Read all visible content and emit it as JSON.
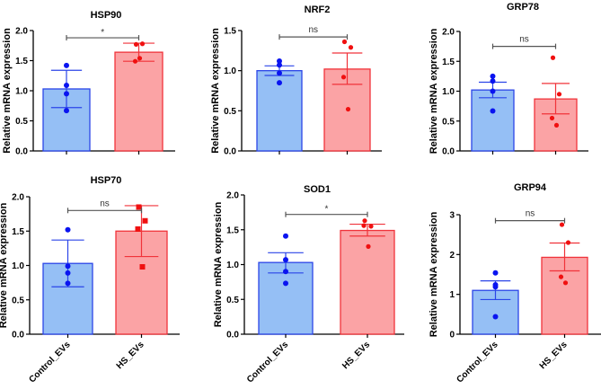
{
  "chart_data": {
    "type": "bar",
    "categories": [
      "Control_EVs",
      "HS_EVs"
    ],
    "ylabel": "Relative mRNA expression",
    "colors": {
      "control_fill": "#95bff5",
      "control_edge": "#2b45e8",
      "control_point": "#0a14f0",
      "hs_fill": "#fba3a5",
      "hs_edge": "#f0333a",
      "hs_point": "#f01010",
      "bracket": "#555555"
    },
    "panels": [
      {
        "title": "HSP90",
        "ylim": [
          0,
          2.0
        ],
        "yticks": [
          "0.0",
          "0.5",
          "1.0",
          "1.5",
          "2.0"
        ],
        "significance": "*",
        "bracket_y": 1.88,
        "series": [
          {
            "name": "Control_EVs",
            "mean": 1.03,
            "err": [
              0.72,
              1.34
            ],
            "points": [
              1.42,
              1.09,
              0.95,
              0.67
            ]
          },
          {
            "name": "HS_EVs",
            "mean": 1.64,
            "err": [
              1.49,
              1.79
            ],
            "points": [
              1.77,
              1.78,
              1.49,
              1.54
            ]
          }
        ]
      },
      {
        "title": "NRF2",
        "ylim": [
          0,
          1.5
        ],
        "yticks": [
          "0.0",
          "0.5",
          "1.0",
          "1.5"
        ],
        "significance": "ns",
        "bracket_y": 1.42,
        "series": [
          {
            "name": "Control_EVs",
            "mean": 1.0,
            "err": [
              0.94,
              1.06
            ],
            "points": [
              1.12,
              1.07,
              0.97,
              0.85
            ]
          },
          {
            "name": "HS_EVs",
            "mean": 1.02,
            "err": [
              0.83,
              1.22
            ],
            "points": [
              1.36,
              1.29,
              0.92,
              0.52
            ]
          }
        ]
      },
      {
        "title": "GRP78",
        "ylim": [
          0,
          2.0
        ],
        "yticks": [
          "0.0",
          "0.5",
          "1.0",
          "1.5",
          "2.0"
        ],
        "significance": "ns",
        "bracket_y": 1.75,
        "series": [
          {
            "name": "Control_EVs",
            "mean": 1.02,
            "err": [
              0.89,
              1.15
            ],
            "points": [
              1.25,
              1.17,
              1.0,
              0.67
            ]
          },
          {
            "name": "HS_EVs",
            "mean": 0.87,
            "err": [
              0.62,
              1.13
            ],
            "points": [
              1.56,
              0.95,
              0.55,
              0.43
            ]
          }
        ]
      },
      {
        "title": "HSP70",
        "ylim": [
          0,
          2.0
        ],
        "yticks": [
          "0.0",
          "0.5",
          "1.0",
          "1.5",
          "2.0"
        ],
        "significance": "ns",
        "bracket_y": 1.8,
        "hs_marker": "square",
        "series": [
          {
            "name": "Control_EVs",
            "mean": 1.03,
            "err": [
              0.69,
              1.37
            ],
            "points": [
              1.52,
              0.99,
              0.89,
              0.74
            ]
          },
          {
            "name": "HS_EVs",
            "mean": 1.5,
            "err": [
              1.13,
              1.87
            ],
            "points": [
              1.85,
              1.65,
              1.53,
              0.98
            ]
          }
        ]
      },
      {
        "title": "SOD1",
        "ylim": [
          0,
          2.0
        ],
        "yticks": [
          "0.0",
          "0.5",
          "1.0",
          "1.5",
          "2.0"
        ],
        "significance": "*",
        "bracket_y": 1.72,
        "series": [
          {
            "name": "Control_EVs",
            "mean": 1.03,
            "err": [
              0.88,
              1.17
            ],
            "points": [
              1.41,
              1.07,
              0.9,
              0.73
            ]
          },
          {
            "name": "HS_EVs",
            "mean": 1.49,
            "err": [
              1.41,
              1.58
            ],
            "points": [
              1.63,
              1.55,
              1.56,
              1.26
            ]
          }
        ]
      },
      {
        "title": "GRP94",
        "ylim": [
          0,
          3
        ],
        "yticks": [
          "0",
          "1",
          "2",
          "3"
        ],
        "significance": "ns",
        "bracket_y": 2.85,
        "series": [
          {
            "name": "Control_EVs",
            "mean": 1.1,
            "err": [
              0.87,
              1.34
            ],
            "points": [
              1.54,
              1.19,
              1.24,
              0.44
            ]
          },
          {
            "name": "HS_EVs",
            "mean": 1.93,
            "err": [
              1.59,
              2.29
            ],
            "points": [
              2.75,
              2.3,
              1.44,
              1.29
            ]
          }
        ]
      }
    ]
  }
}
